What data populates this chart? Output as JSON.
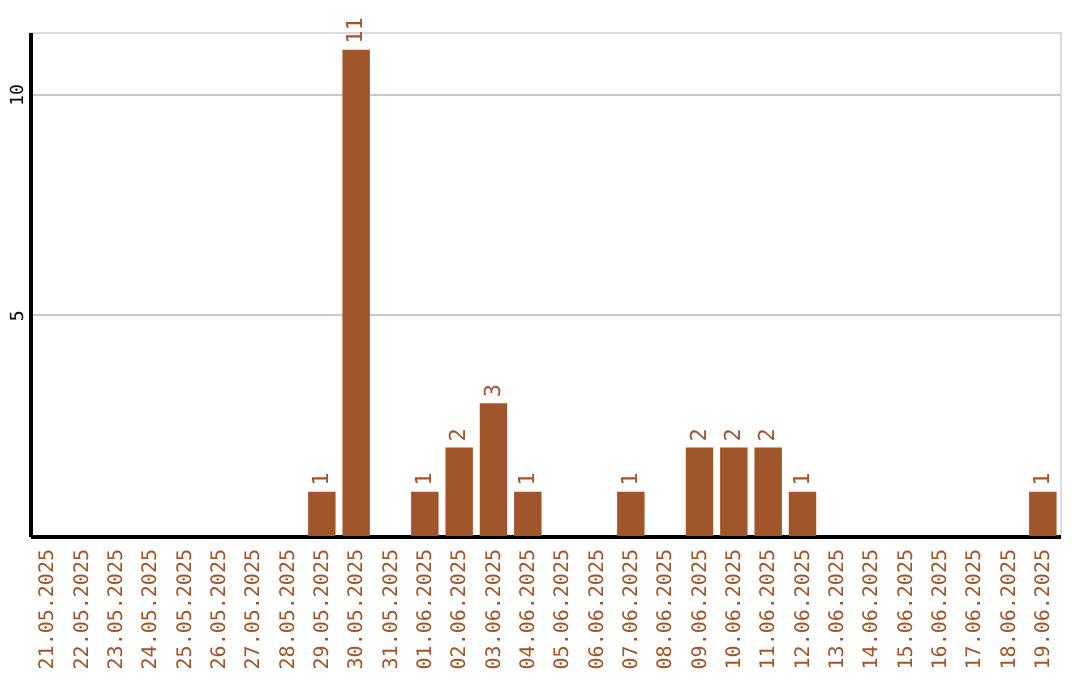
{
  "chart_data": {
    "type": "bar",
    "categories": [
      "21.05.2025",
      "22.05.2025",
      "23.05.2025",
      "24.05.2025",
      "25.05.2025",
      "26.05.2025",
      "27.05.2025",
      "28.05.2025",
      "29.05.2025",
      "30.05.2025",
      "31.05.2025",
      "01.06.2025",
      "02.06.2025",
      "03.06.2025",
      "04.06.2025",
      "05.06.2025",
      "06.06.2025",
      "07.06.2025",
      "08.06.2025",
      "09.06.2025",
      "10.06.2025",
      "11.06.2025",
      "12.06.2025",
      "13.06.2025",
      "14.06.2025",
      "15.06.2025",
      "16.06.2025",
      "17.06.2025",
      "18.06.2025",
      "19.06.2025"
    ],
    "values": [
      null,
      null,
      null,
      null,
      null,
      null,
      null,
      null,
      1,
      11,
      null,
      1,
      2,
      3,
      1,
      null,
      null,
      1,
      null,
      2,
      2,
      2,
      1,
      null,
      null,
      null,
      null,
      null,
      null,
      1
    ],
    "color": "#a0562a",
    "ylim": [
      0,
      11.4
    ],
    "yticks": [
      5,
      10
    ],
    "grid": "y",
    "data_labels": true
  }
}
